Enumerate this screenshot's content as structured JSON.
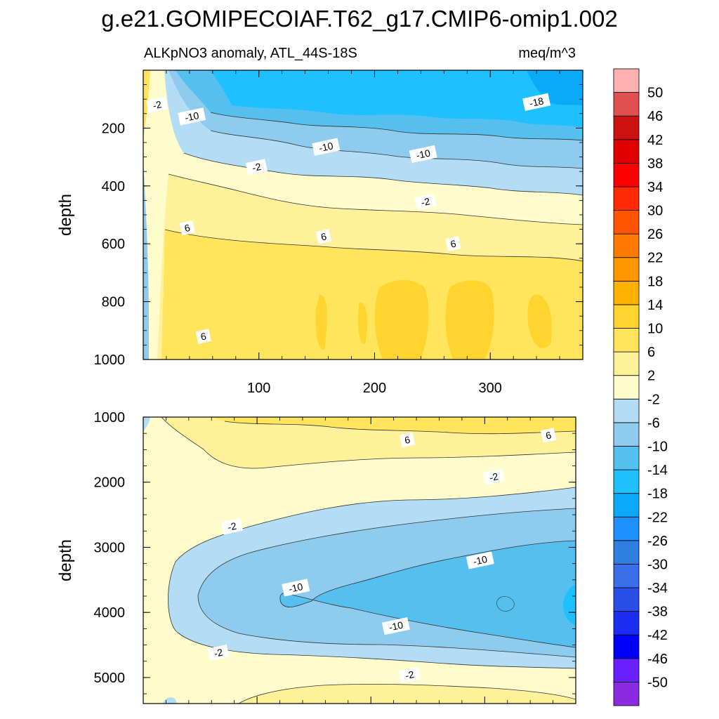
{
  "title": "g.e21.GOMIPECOIAF.T62_g17.CMIP6-omip1.002",
  "colors": {
    "background": "#ffffff",
    "palette": [
      "#8a2be2",
      "#6a1fff",
      "#0000ff",
      "#1a2df0",
      "#2a4fe6",
      "#3a6ee8",
      "#2f7fe0",
      "#1e90ff",
      "#0aaaf8",
      "#1ec0ff",
      "#55bff0",
      "#8ecbee",
      "#b3ddf5",
      "#fffccc",
      "#fff09a",
      "#ffe45c",
      "#ffd42e",
      "#ffb000",
      "#ff9800",
      "#ff7a00",
      "#ff5500",
      "#ff2a00",
      "#ff0000",
      "#e00000",
      "#cc1111",
      "#e05050",
      "#ffb0b0"
    ]
  },
  "chart_data": [
    {
      "type": "heatmap",
      "subtitle_left": "ALKpNO3 anomaly, ATL_44S-18S",
      "subtitle_right": "meq/m^3",
      "ylabel": "depth",
      "xlabel": "",
      "xlim": [
        0,
        380
      ],
      "ylim": [
        1000,
        0
      ],
      "x_ticks": [
        100,
        200,
        300
      ],
      "y_ticks": [
        200,
        400,
        600,
        800,
        1000
      ],
      "grid": false,
      "contour_labels": [
        {
          "text": "-2",
          "x": 12,
          "y": 120
        },
        {
          "text": "-10",
          "x": 42,
          "y": 160
        },
        {
          "text": "-18",
          "x": 340,
          "y": 110
        },
        {
          "text": "-10",
          "x": 158,
          "y": 265
        },
        {
          "text": "-10",
          "x": 242,
          "y": 290
        },
        {
          "text": "-2",
          "x": 98,
          "y": 335
        },
        {
          "text": "-2",
          "x": 244,
          "y": 455
        },
        {
          "text": "6",
          "x": 38,
          "y": 545
        },
        {
          "text": "6",
          "x": 156,
          "y": 575
        },
        {
          "text": "6",
          "x": 268,
          "y": 600
        },
        {
          "text": "6",
          "x": 52,
          "y": 920
        }
      ]
    },
    {
      "type": "heatmap",
      "ylabel": "depth",
      "xlabel": "",
      "xlim": [
        0,
        380
      ],
      "ylim": [
        5400,
        1000
      ],
      "y_ticks": [
        1000,
        2000,
        3000,
        4000,
        5000
      ],
      "grid": false,
      "contour_labels": [
        {
          "text": "6",
          "x": 232,
          "y": 1350
        },
        {
          "text": "6",
          "x": 356,
          "y": 1280
        },
        {
          "text": "-2",
          "x": 308,
          "y": 1920
        },
        {
          "text": "-2",
          "x": 78,
          "y": 2680
        },
        {
          "text": "-10",
          "x": 296,
          "y": 3200
        },
        {
          "text": "-10",
          "x": 134,
          "y": 3620
        },
        {
          "text": "-10",
          "x": 222,
          "y": 4210
        },
        {
          "text": "-2",
          "x": 66,
          "y": 4620
        },
        {
          "text": "-2",
          "x": 234,
          "y": 4960
        }
      ]
    }
  ],
  "colorbar": {
    "labels": [
      "50",
      "46",
      "42",
      "38",
      "34",
      "30",
      "26",
      "22",
      "18",
      "14",
      "10",
      "6",
      "2",
      "-2",
      "-6",
      "-10",
      "-14",
      "-18",
      "-22",
      "-26",
      "-30",
      "-34",
      "-38",
      "-42",
      "-46",
      "-50"
    ]
  }
}
